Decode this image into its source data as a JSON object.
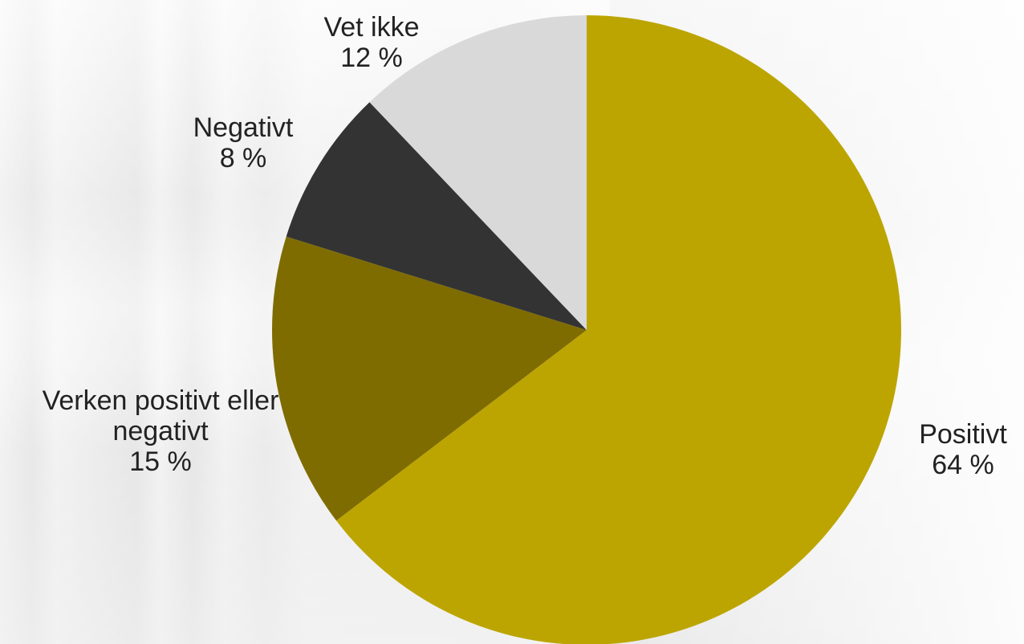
{
  "chart_data": {
    "type": "pie",
    "slices": [
      {
        "label": "Positivt",
        "value": 64,
        "value_text": "64 %",
        "color": "#bca500"
      },
      {
        "label": "Verken positivt eller negativt",
        "label_lines": [
          "Verken positivt eller",
          "negativt"
        ],
        "value": 15,
        "value_text": "15 %",
        "color": "#7f6c00"
      },
      {
        "label": "Negativt",
        "value": 8,
        "value_text": "8 %",
        "color": "#333333"
      },
      {
        "label": "Vet ikke",
        "value": 12,
        "value_text": "12 %",
        "color": "#d9d9d9"
      }
    ],
    "start_angle": "12 o'clock",
    "direction": "clockwise",
    "legend": "none"
  }
}
